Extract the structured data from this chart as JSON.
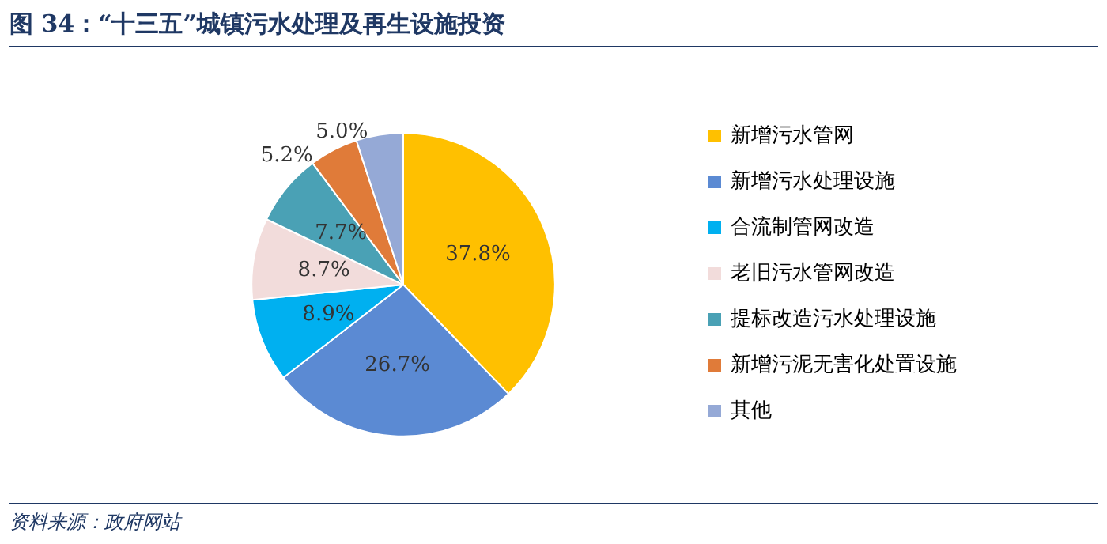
{
  "chart_data": {
    "type": "pie",
    "title": "图 34：“十三五”城镇污水处理及再生设施投资",
    "categories": [
      "新增污水管网",
      "新增污水处理设施",
      "合流制管网改造",
      "老旧污水管网改造",
      "提标改造污水处理设施",
      "新增污泥无害化处置设施",
      "其他"
    ],
    "values": [
      37.8,
      26.7,
      8.9,
      8.7,
      7.7,
      5.2,
      5.0
    ],
    "value_labels": [
      "37.8%",
      "26.7%",
      "8.9%",
      "8.7%",
      "7.7%",
      "5.2%",
      "5.0%"
    ],
    "colors": [
      "#ffc000",
      "#5b8ad3",
      "#00b0f0",
      "#f2dcdb",
      "#4aa1b5",
      "#e07b39",
      "#95a9d6"
    ],
    "legend": "right",
    "annotations": [
      "资料来源：政府网站"
    ]
  }
}
